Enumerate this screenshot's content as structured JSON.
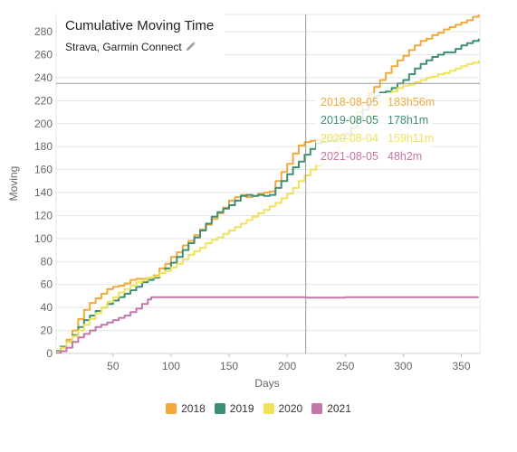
{
  "chart_data": {
    "type": "line",
    "title": "Cumulative Moving Time",
    "subtitle": "Strava, Garmin Connect",
    "xlabel": "Days",
    "ylabel": "Moving",
    "xlim": [
      1,
      366
    ],
    "ylim": [
      0,
      295
    ],
    "x_ticks": [
      50,
      100,
      150,
      200,
      250,
      300,
      350
    ],
    "y_ticks": [
      0,
      20,
      40,
      60,
      80,
      100,
      120,
      140,
      160,
      180,
      200,
      220,
      240,
      260,
      280
    ],
    "grid": true,
    "crosshair": {
      "x": 216,
      "y": 235
    },
    "legend_position": "bottom",
    "series": [
      {
        "name": "2018",
        "color": "#f2a93b",
        "points": [
          [
            1,
            1
          ],
          [
            5,
            5
          ],
          [
            10,
            12
          ],
          [
            15,
            20
          ],
          [
            20,
            30
          ],
          [
            25,
            38
          ],
          [
            30,
            44
          ],
          [
            35,
            48
          ],
          [
            40,
            52
          ],
          [
            45,
            56
          ],
          [
            50,
            58
          ],
          [
            55,
            59
          ],
          [
            60,
            61
          ],
          [
            65,
            64
          ],
          [
            70,
            65
          ],
          [
            75,
            65
          ],
          [
            80,
            66
          ],
          [
            85,
            68
          ],
          [
            90,
            74
          ],
          [
            95,
            78
          ],
          [
            100,
            84
          ],
          [
            105,
            88
          ],
          [
            110,
            94
          ],
          [
            115,
            98
          ],
          [
            120,
            103
          ],
          [
            125,
            108
          ],
          [
            130,
            112
          ],
          [
            135,
            117
          ],
          [
            140,
            122
          ],
          [
            145,
            127
          ],
          [
            150,
            133
          ],
          [
            155,
            136
          ],
          [
            160,
            138
          ],
          [
            165,
            136
          ],
          [
            170,
            137
          ],
          [
            175,
            139
          ],
          [
            180,
            140
          ],
          [
            185,
            141
          ],
          [
            190,
            150
          ],
          [
            195,
            158
          ],
          [
            200,
            165
          ],
          [
            205,
            174
          ],
          [
            210,
            181
          ],
          [
            215,
            184
          ],
          [
            220,
            185
          ],
          [
            225,
            186
          ],
          [
            230,
            187
          ],
          [
            235,
            188
          ],
          [
            240,
            189
          ],
          [
            245,
            190
          ],
          [
            250,
            192
          ],
          [
            255,
            200
          ],
          [
            260,
            210
          ],
          [
            265,
            218
          ],
          [
            270,
            226
          ],
          [
            275,
            232
          ],
          [
            280,
            238
          ],
          [
            285,
            244
          ],
          [
            290,
            250
          ],
          [
            295,
            255
          ],
          [
            300,
            259
          ],
          [
            305,
            264
          ],
          [
            310,
            268
          ],
          [
            315,
            272
          ],
          [
            320,
            274
          ],
          [
            325,
            277
          ],
          [
            330,
            279
          ],
          [
            335,
            282
          ],
          [
            340,
            284
          ],
          [
            345,
            286
          ],
          [
            350,
            288
          ],
          [
            355,
            290
          ],
          [
            360,
            293
          ],
          [
            365,
            297
          ]
        ]
      },
      {
        "name": "2019",
        "color": "#3d8f6f",
        "points": [
          [
            1,
            2
          ],
          [
            5,
            6
          ],
          [
            10,
            10
          ],
          [
            15,
            16
          ],
          [
            20,
            23
          ],
          [
            25,
            29
          ],
          [
            30,
            33
          ],
          [
            35,
            37
          ],
          [
            40,
            40
          ],
          [
            45,
            43
          ],
          [
            50,
            46
          ],
          [
            55,
            49
          ],
          [
            60,
            52
          ],
          [
            65,
            55
          ],
          [
            70,
            58
          ],
          [
            75,
            62
          ],
          [
            80,
            64
          ],
          [
            85,
            66
          ],
          [
            90,
            70
          ],
          [
            95,
            74
          ],
          [
            100,
            79
          ],
          [
            105,
            84
          ],
          [
            110,
            90
          ],
          [
            115,
            96
          ],
          [
            120,
            101
          ],
          [
            125,
            107
          ],
          [
            130,
            113
          ],
          [
            135,
            119
          ],
          [
            140,
            123
          ],
          [
            145,
            126
          ],
          [
            150,
            129
          ],
          [
            155,
            133
          ],
          [
            160,
            137
          ],
          [
            165,
            138
          ],
          [
            170,
            137
          ],
          [
            175,
            138
          ],
          [
            180,
            137
          ],
          [
            185,
            138
          ],
          [
            190,
            144
          ],
          [
            195,
            150
          ],
          [
            200,
            156
          ],
          [
            205,
            162
          ],
          [
            210,
            167
          ],
          [
            215,
            173
          ],
          [
            220,
            178
          ],
          [
            225,
            183
          ],
          [
            230,
            184
          ],
          [
            235,
            185
          ],
          [
            240,
            186
          ],
          [
            245,
            187
          ],
          [
            250,
            190
          ],
          [
            255,
            196
          ],
          [
            260,
            204
          ],
          [
            265,
            212
          ],
          [
            270,
            219
          ],
          [
            275,
            224
          ],
          [
            280,
            227
          ],
          [
            285,
            228
          ],
          [
            290,
            231
          ],
          [
            295,
            235
          ],
          [
            300,
            238
          ],
          [
            305,
            243
          ],
          [
            310,
            248
          ],
          [
            315,
            252
          ],
          [
            320,
            255
          ],
          [
            325,
            258
          ],
          [
            330,
            260
          ],
          [
            335,
            262
          ],
          [
            340,
            262
          ],
          [
            345,
            265
          ],
          [
            350,
            268
          ],
          [
            355,
            270
          ],
          [
            360,
            272
          ],
          [
            365,
            274
          ]
        ]
      },
      {
        "name": "2020",
        "color": "#f0e35a",
        "points": [
          [
            1,
            1
          ],
          [
            5,
            5
          ],
          [
            10,
            10
          ],
          [
            15,
            15
          ],
          [
            20,
            20
          ],
          [
            25,
            25
          ],
          [
            30,
            30
          ],
          [
            35,
            35
          ],
          [
            40,
            40
          ],
          [
            45,
            45
          ],
          [
            50,
            49
          ],
          [
            55,
            53
          ],
          [
            60,
            56
          ],
          [
            65,
            59
          ],
          [
            70,
            62
          ],
          [
            75,
            64
          ],
          [
            80,
            66
          ],
          [
            85,
            67
          ],
          [
            90,
            70
          ],
          [
            95,
            72
          ],
          [
            100,
            75
          ],
          [
            105,
            78
          ],
          [
            110,
            82
          ],
          [
            115,
            86
          ],
          [
            120,
            89
          ],
          [
            125,
            92
          ],
          [
            130,
            96
          ],
          [
            135,
            99
          ],
          [
            140,
            101
          ],
          [
            145,
            104
          ],
          [
            150,
            107
          ],
          [
            155,
            110
          ],
          [
            160,
            113
          ],
          [
            165,
            116
          ],
          [
            170,
            119
          ],
          [
            175,
            122
          ],
          [
            180,
            125
          ],
          [
            185,
            128
          ],
          [
            190,
            131
          ],
          [
            195,
            135
          ],
          [
            200,
            139
          ],
          [
            205,
            144
          ],
          [
            210,
            150
          ],
          [
            215,
            155
          ],
          [
            220,
            160
          ],
          [
            225,
            164
          ],
          [
            230,
            168
          ],
          [
            235,
            172
          ],
          [
            240,
            176
          ],
          [
            245,
            180
          ],
          [
            250,
            185
          ],
          [
            255,
            190
          ],
          [
            260,
            196
          ],
          [
            265,
            202
          ],
          [
            270,
            208
          ],
          [
            275,
            213
          ],
          [
            280,
            218
          ],
          [
            285,
            223
          ],
          [
            290,
            228
          ],
          [
            295,
            231
          ],
          [
            300,
            233
          ],
          [
            305,
            234
          ],
          [
            310,
            236
          ],
          [
            315,
            238
          ],
          [
            320,
            240
          ],
          [
            325,
            241
          ],
          [
            330,
            243
          ],
          [
            335,
            244
          ],
          [
            340,
            246
          ],
          [
            345,
            248
          ],
          [
            350,
            250
          ],
          [
            355,
            252
          ],
          [
            360,
            253
          ],
          [
            365,
            255
          ]
        ]
      },
      {
        "name": "2021",
        "color": "#c277a8",
        "points": [
          [
            1,
            0
          ],
          [
            5,
            2
          ],
          [
            10,
            5
          ],
          [
            15,
            10
          ],
          [
            20,
            14
          ],
          [
            25,
            17
          ],
          [
            30,
            20
          ],
          [
            35,
            23
          ],
          [
            40,
            25
          ],
          [
            45,
            27
          ],
          [
            50,
            29
          ],
          [
            55,
            31
          ],
          [
            60,
            33
          ],
          [
            65,
            36
          ],
          [
            70,
            39
          ],
          [
            75,
            43
          ],
          [
            80,
            47
          ],
          [
            83,
            49
          ],
          [
            90,
            49
          ],
          [
            100,
            49
          ],
          [
            150,
            49
          ],
          [
            200,
            49
          ],
          [
            216,
            48.5
          ],
          [
            250,
            49
          ],
          [
            300,
            49
          ],
          [
            365,
            49
          ]
        ]
      }
    ],
    "tooltip": {
      "rows": [
        {
          "date": "2018-08-05",
          "value": "183h56m",
          "color": "#f2a93b"
        },
        {
          "date": "2019-08-05",
          "value": "178h1m",
          "color": "#3d8f6f"
        },
        {
          "date": "2020-08-04",
          "value": "159h11m",
          "color": "#f0e35a"
        },
        {
          "date": "2021-08-05",
          "value": "48h2m",
          "color": "#c277a8"
        }
      ]
    }
  },
  "icons": {
    "edit": "pencil-icon"
  }
}
